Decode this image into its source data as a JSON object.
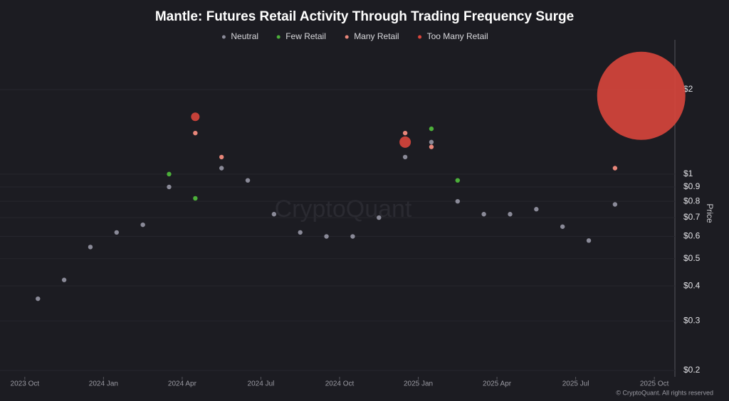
{
  "chart_data": {
    "type": "scatter",
    "title": "Mantle: Futures Retail Activity Through Trading Frequency Surge",
    "y_label": "Price",
    "watermark": "CryptoQuant",
    "credit": "© CryptoQuant. All rights reserved",
    "log_y": true,
    "legend": "top",
    "xlim": [
      "2023-09",
      "2025-11"
    ],
    "xticks": [
      {
        "value": "2023-10",
        "label": "2023 Oct"
      },
      {
        "value": "2024-01",
        "label": "2024 Jan"
      },
      {
        "value": "2024-04",
        "label": "2024 Apr"
      },
      {
        "value": "2024-07",
        "label": "2024 Jul"
      },
      {
        "value": "2024-10",
        "label": "2024 Oct"
      },
      {
        "value": "2025-01",
        "label": "2025 Jan"
      },
      {
        "value": "2025-04",
        "label": "2025 Apr"
      },
      {
        "value": "2025-07",
        "label": "2025 Jul"
      },
      {
        "value": "2025-10",
        "label": "2025 Oct"
      }
    ],
    "ylim": [
      0.19,
      3
    ],
    "yticks": [
      {
        "value": 0.2,
        "label": "$0.2"
      },
      {
        "value": 0.3,
        "label": "$0.3"
      },
      {
        "value": 0.4,
        "label": "$0.4"
      },
      {
        "value": 0.5,
        "label": "$0.5"
      },
      {
        "value": 0.6,
        "label": "$0.6"
      },
      {
        "value": 0.7,
        "label": "$0.7"
      },
      {
        "value": 0.8,
        "label": "$0.8"
      },
      {
        "value": 0.9,
        "label": "$0.9"
      },
      {
        "value": 1,
        "label": "$1"
      },
      {
        "value": 2,
        "label": "$2"
      }
    ],
    "series": [
      {
        "name": "Neutral",
        "color": "#8a8a98",
        "x": [
          "2023-10",
          "2023-11",
          "2023-12",
          "2024-01",
          "2024-02",
          "2024-03",
          "2024-05",
          "2024-06",
          "2024-07",
          "2024-08",
          "2024-09",
          "2024-10",
          "2024-11",
          "2024-12",
          "2025-01",
          "2025-02",
          "2025-03",
          "2025-04",
          "2025-05",
          "2025-06",
          "2025-07",
          "2025-08"
        ],
        "values": [
          0.36,
          0.42,
          0.55,
          0.62,
          0.66,
          0.9,
          1.05,
          0.95,
          0.72,
          0.62,
          0.6,
          0.6,
          0.7,
          1.15,
          1.3,
          0.8,
          0.72,
          0.72,
          0.75,
          0.65,
          0.58,
          0.78
        ]
      },
      {
        "name": "Few Retail",
        "color": "#4caf3a",
        "x": [
          "2024-03",
          "2024-04",
          "2025-01",
          "2025-02"
        ],
        "values": [
          1.0,
          0.82,
          1.45,
          0.95
        ]
      },
      {
        "name": "Many Retail",
        "color": "#e8867a",
        "x": [
          "2024-04",
          "2024-05",
          "2024-12",
          "2025-01",
          "2025-08"
        ],
        "values": [
          1.4,
          1.15,
          1.4,
          1.25,
          1.05
        ]
      },
      {
        "name": "Too Many Retail",
        "color": "#d9463c",
        "x": [
          "2024-04",
          "2024-12",
          "2025-09"
        ],
        "values": [
          1.6,
          1.3,
          1.9
        ],
        "sizes": [
          6,
          8,
          62
        ]
      }
    ]
  }
}
